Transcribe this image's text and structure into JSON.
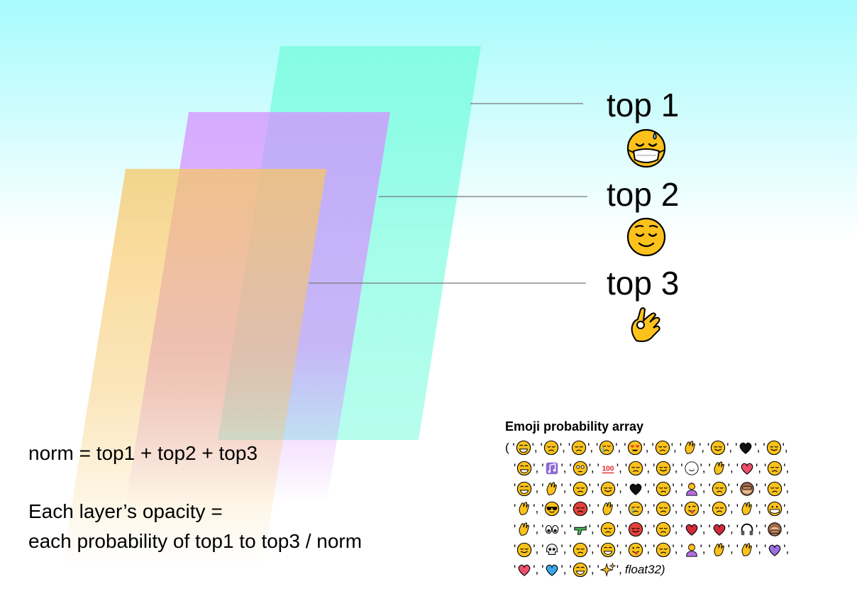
{
  "layers": [
    {
      "label": "top 1",
      "emoji": "face-with-medical-mask-and-sweat",
      "color": "#7dfce0"
    },
    {
      "label": "top 2",
      "emoji": "relieved-face",
      "color": "#d68cff"
    },
    {
      "label": "top 3",
      "emoji": "ok-hand",
      "color": "#f6c766"
    }
  ],
  "formula": {
    "norm": "norm = top1 + top2 + top3",
    "opacity_line1": "Each layer’s opacity =",
    "opacity_line2": "each probability of top1 to top3 / norm"
  },
  "array": {
    "title": "Emoji probability array",
    "open": "(",
    "close_text": "float32)",
    "rows": [
      [
        "joy",
        "unamused",
        "weary",
        "sob",
        "heart-eyes",
        "pensive",
        "ok-hand",
        "blush",
        "black-heart",
        "smirk"
      ],
      [
        "grin",
        "notes",
        "flushed",
        "hundred",
        "sleeping",
        "relieved",
        "relaxed",
        "raised-hands",
        "two-hearts",
        "expressionless"
      ],
      [
        "sweat-smile",
        "pray",
        "confused",
        "kissing-heart",
        "heart-suit",
        "neutral",
        "person-tipping-hand",
        "disappointed",
        "see-no-evil",
        "tired"
      ],
      [
        "victory",
        "sunglasses",
        "rage",
        "thumbsup",
        "cry",
        "sleepy",
        "yum",
        "triumph",
        "hand",
        "mask"
      ],
      [
        "clap",
        "eyes",
        "gun",
        "persevere",
        "smiling-imp",
        "sweat",
        "broken-heart",
        "red-heart",
        "headphones",
        "speak-no-evil"
      ],
      [
        "wink",
        "skull",
        "confounded",
        "smile",
        "stuck-out-tongue-winking",
        "angry",
        "person-no-gesture",
        "muscle",
        "punch",
        "purple-heart"
      ],
      [
        "sparkling-heart",
        "blue-heart",
        "grimacing",
        "sparkles"
      ]
    ]
  }
}
